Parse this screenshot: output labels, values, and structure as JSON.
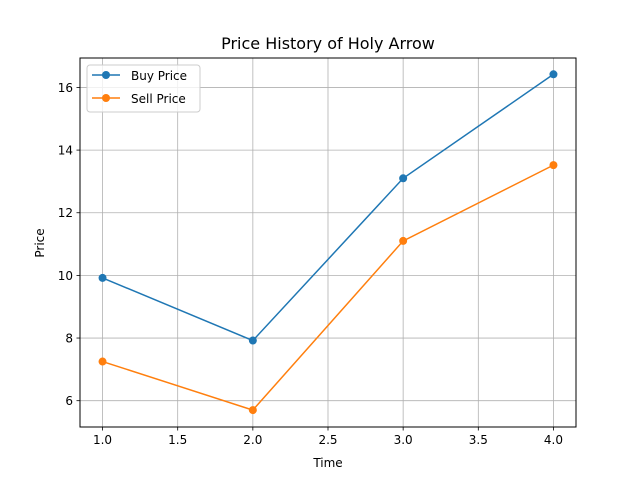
{
  "chart_data": {
    "type": "line",
    "title": "Price History of Holy Arrow",
    "xlabel": "Time",
    "ylabel": "Price",
    "x": [
      1.0,
      2.0,
      3.0,
      4.0
    ],
    "xlim": [
      0.85,
      4.15
    ],
    "ylim": [
      5.16,
      16.94
    ],
    "xticks": [
      "1.0",
      "1.5",
      "2.0",
      "2.5",
      "3.0",
      "3.5",
      "4.0"
    ],
    "xtick_values": [
      1.0,
      1.5,
      2.0,
      2.5,
      3.0,
      3.5,
      4.0
    ],
    "yticks": [
      "6",
      "8",
      "10",
      "12",
      "14",
      "16"
    ],
    "ytick_values": [
      6,
      8,
      10,
      12,
      14,
      16
    ],
    "grid": true,
    "legend_position": "top-left",
    "series": [
      {
        "name": "Buy Price",
        "color": "#1f77b4",
        "values": [
          9.92,
          7.92,
          13.1,
          16.42
        ]
      },
      {
        "name": "Sell Price",
        "color": "#ff7f0e",
        "values": [
          7.25,
          5.7,
          11.1,
          13.52
        ]
      }
    ]
  }
}
